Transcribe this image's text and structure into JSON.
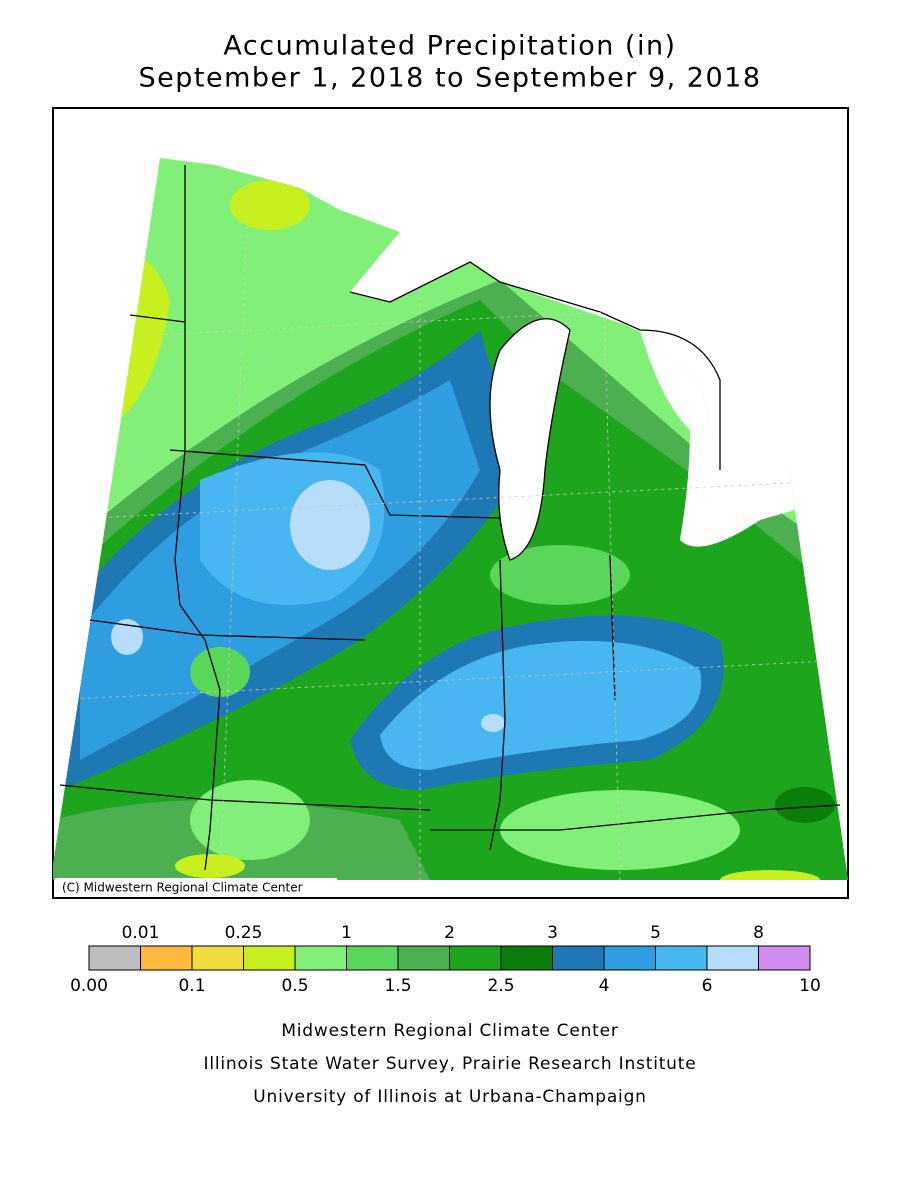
{
  "header": {
    "title": "Accumulated Precipitation (in)",
    "subtitle": "September 1, 2018 to September 9, 2018"
  },
  "map": {
    "copyright": "(C) Midwestern Regional Climate Center"
  },
  "legend": {
    "colors": [
      "#bebebe",
      "#ffba3f",
      "#f2dc3c",
      "#c8f01e",
      "#82f078",
      "#5ad75a",
      "#4caf50",
      "#1ea51e",
      "#0a7d0a",
      "#1e78b4",
      "#2e9ee0",
      "#48b6f0",
      "#b6defa",
      "#d28cf0"
    ],
    "upper_labels": [
      "0.01",
      "0.25",
      "1",
      "2",
      "3",
      "5",
      "8"
    ],
    "lower_labels": [
      "0.00",
      "0.1",
      "0.5",
      "1.5",
      "2.5",
      "4",
      "6",
      "10"
    ]
  },
  "footer": {
    "lines": [
      "Midwestern Regional Climate Center",
      "Illinois State Water Survey, Prairie Research Institute",
      "University of Illinois at Urbana-Champaign"
    ]
  }
}
